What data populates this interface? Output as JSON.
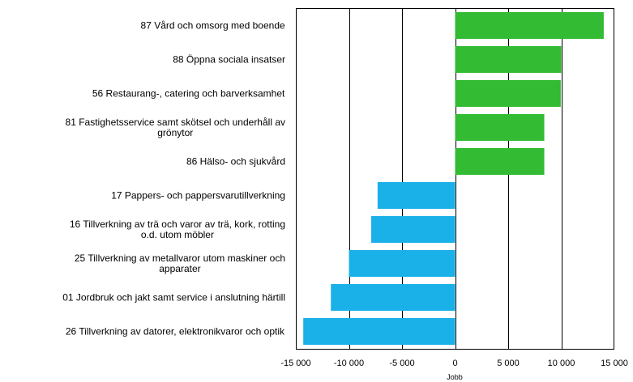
{
  "colors": {
    "positive": "#33bb33",
    "negative": "#1ab0e8",
    "grid": "#000000",
    "background": "#ffffff"
  },
  "chart_data": {
    "type": "bar",
    "orientation": "horizontal",
    "title": "",
    "xlabel": "Jobb",
    "ylabel": "",
    "xlim": [
      -15000,
      15000
    ],
    "xticks": [
      -15000,
      -10000,
      -5000,
      0,
      5000,
      10000,
      15000
    ],
    "xtick_labels": [
      "-15 000",
      "-10 000",
      "-5 000",
      "0",
      "5 000",
      "10 000",
      "15 000"
    ],
    "grid": "vertical",
    "legend": "none",
    "categories": [
      [
        "87 Vård och omsorg med boende"
      ],
      [
        "88 Öppna sociala insatser"
      ],
      [
        "56 Restaurang-, catering och barverksamhet"
      ],
      [
        "81 Fastighetsservice samt skötsel och underhåll av",
        "grönytor"
      ],
      [
        "86 Hälso- och sjukvård"
      ],
      [
        "17 Pappers- och pappersvarutillverkning"
      ],
      [
        "16 Tillverkning av trä och varor av trä, kork, rotting",
        "o.d. utom möbler"
      ],
      [
        "25 Tillverkning av metallvaror utom maskiner och",
        "apparater"
      ],
      [
        "01 Jordbruk och jakt samt service i anslutning härtill"
      ],
      [
        "26 Tillverkning av datorer, elektronikvaror och optik"
      ]
    ],
    "values": [
      14000,
      10000,
      9950,
      8400,
      8400,
      -7300,
      -7900,
      -10000,
      -11700,
      -14300
    ]
  }
}
